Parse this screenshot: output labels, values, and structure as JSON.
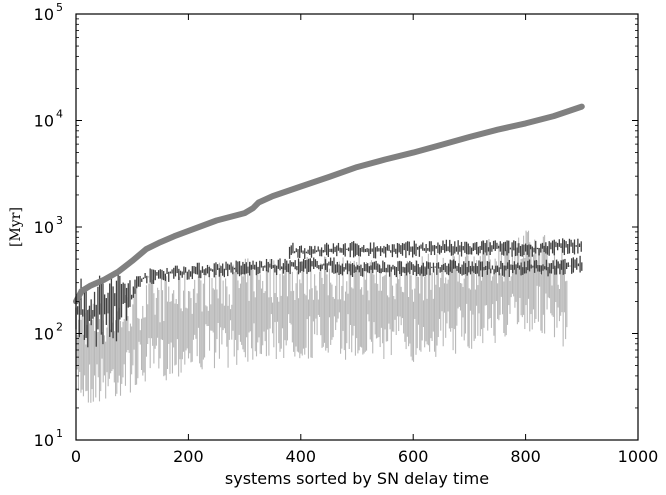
{
  "chart_data": {
    "type": "scatter",
    "title": "",
    "xlabel": "systems sorted by SN delay time",
    "ylabel": "[Myr]",
    "xlim": [
      0,
      1000
    ],
    "ylim": [
      10,
      100000
    ],
    "yscale": "log",
    "grid": false,
    "x_ticks": [
      {
        "value": 0,
        "label": "0"
      },
      {
        "value": 200,
        "label": "200"
      },
      {
        "value": 400,
        "label": "400"
      },
      {
        "value": 600,
        "label": "600"
      },
      {
        "value": 800,
        "label": "800"
      },
      {
        "value": 1000,
        "label": "1000"
      }
    ],
    "y_ticks": [
      {
        "value": 10,
        "base": "10",
        "exp": "1"
      },
      {
        "value": 100,
        "base": "10",
        "exp": "2"
      },
      {
        "value": 1000,
        "base": "10",
        "exp": "3"
      },
      {
        "value": 10000,
        "base": "10",
        "exp": "4"
      },
      {
        "value": 100000,
        "base": "10",
        "exp": "5"
      }
    ],
    "series": [
      {
        "color": "#808080",
        "style": "thick-line",
        "x": [
          0,
          10,
          25,
          50,
          75,
          100,
          125,
          150,
          175,
          200,
          250,
          300,
          315,
          325,
          350,
          400,
          450,
          500,
          550,
          600,
          650,
          700,
          750,
          800,
          850,
          900
        ],
        "y": [
          200,
          250,
          280,
          320,
          380,
          480,
          620,
          720,
          820,
          920,
          1150,
          1350,
          1500,
          1700,
          1950,
          2400,
          2950,
          3650,
          4300,
          5000,
          5900,
          7000,
          8200,
          9400,
          11000,
          13500
        ]
      },
      {
        "color": "#404040",
        "style": "dash-segments",
        "x": [
          0,
          25,
          50,
          75,
          95,
          110,
          150,
          200,
          250,
          300,
          350,
          400,
          450,
          500,
          550,
          600,
          650,
          700,
          750,
          800,
          850,
          900
        ],
        "y": [
          150,
          160,
          170,
          185,
          200,
          320,
          360,
          380,
          400,
          410,
          420,
          430,
          440,
          400,
          410,
          400,
          420,
          410,
          400,
          420,
          410,
          450
        ]
      },
      {
        "color": "#404040",
        "style": "dash-segments",
        "x": [
          380,
          400,
          450,
          500,
          550,
          600,
          650,
          700,
          750,
          800,
          850,
          900
        ],
        "y": [
          600,
          580,
          600,
          620,
          600,
          620,
          640,
          620,
          640,
          620,
          650,
          660
        ]
      },
      {
        "color": "#b8b8b8",
        "style": "vertical-segments",
        "x": [
          0,
          25,
          50,
          75,
          100,
          125,
          150,
          175,
          200,
          225,
          250,
          275,
          300,
          325,
          350,
          375,
          400,
          425,
          450,
          475,
          500,
          525,
          550,
          575,
          600,
          625,
          650,
          675,
          700,
          725,
          750,
          775,
          800,
          825,
          850,
          875
        ],
        "y": [
          70,
          65,
          70,
          75,
          90,
          100,
          110,
          120,
          130,
          140,
          150,
          150,
          160,
          180,
          170,
          180,
          170,
          180,
          170,
          180,
          170,
          180,
          170,
          180,
          170,
          180,
          190,
          200,
          220,
          240,
          260,
          280,
          300,
          320,
          240,
          200
        ]
      }
    ]
  }
}
